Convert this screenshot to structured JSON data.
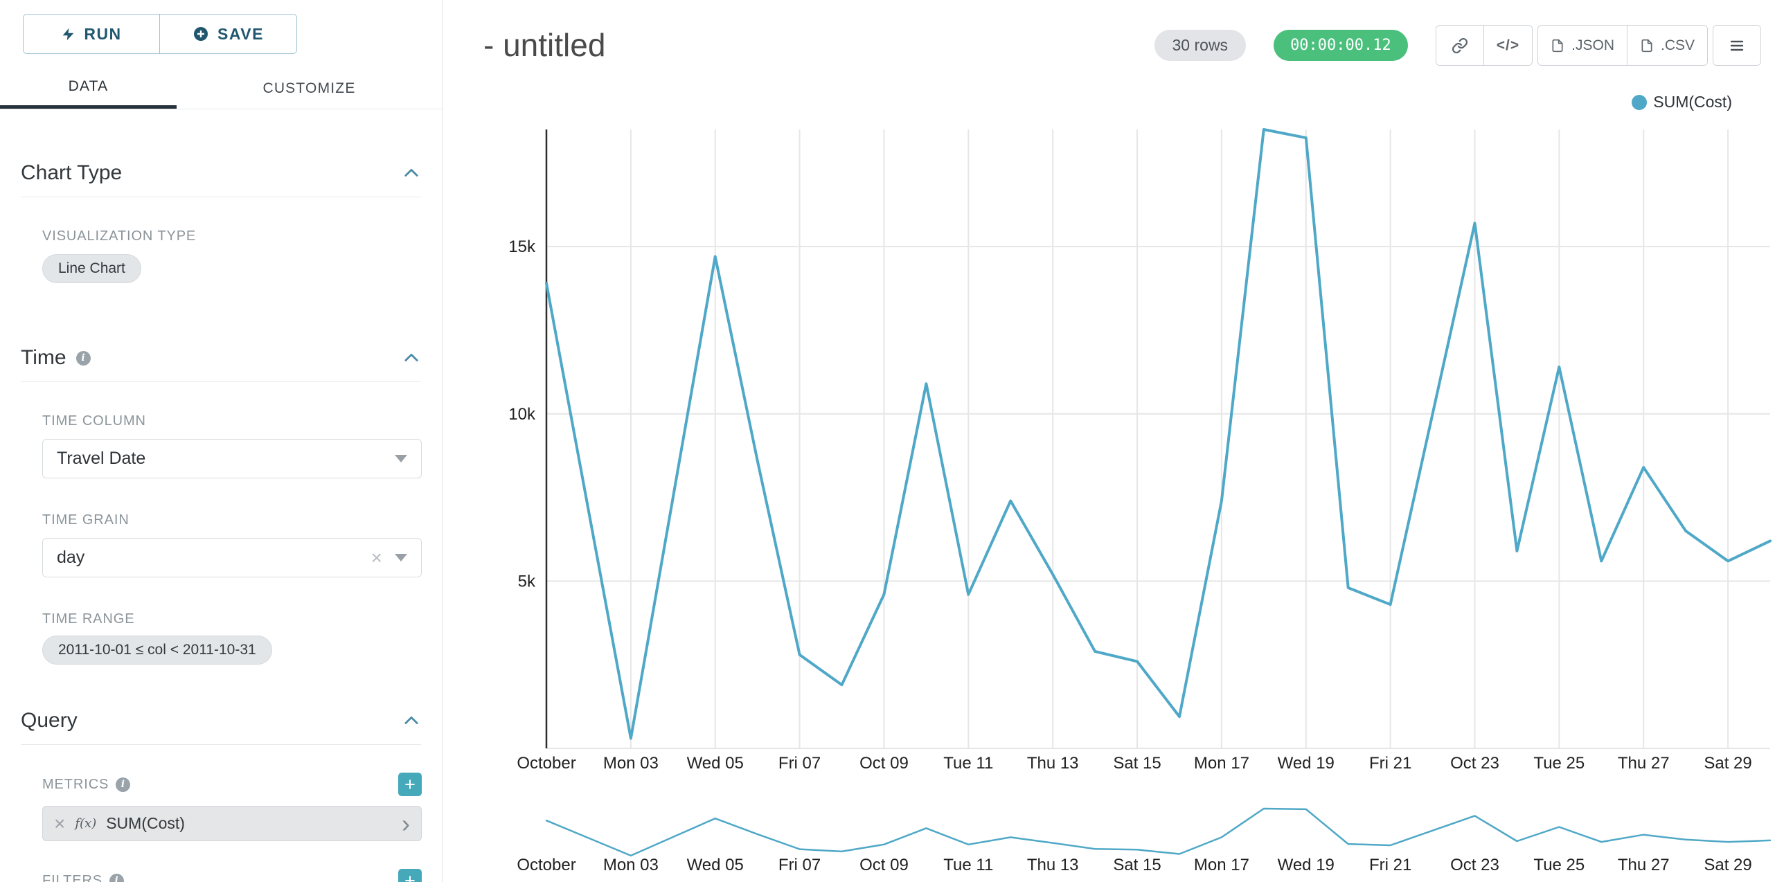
{
  "sidebar": {
    "run_label": "RUN",
    "save_label": "SAVE",
    "tabs": [
      {
        "label": "DATA",
        "active": true
      },
      {
        "label": "CUSTOMIZE",
        "active": false
      }
    ],
    "chart_type_section": {
      "title": "Chart Type",
      "viz_label": "VISUALIZATION TYPE",
      "viz_value": "Line Chart"
    },
    "time_section": {
      "title": "Time",
      "column_label": "TIME COLUMN",
      "column_value": "Travel Date",
      "grain_label": "TIME GRAIN",
      "grain_value": "day",
      "range_label": "TIME RANGE",
      "range_value": "2011-10-01 ≤ col < 2011-10-31"
    },
    "query_section": {
      "title": "Query",
      "metrics_label": "METRICS",
      "metric_fx": "f(x)",
      "metric_value": "SUM(Cost)",
      "filters_label": "FILTERS"
    }
  },
  "header": {
    "title": "- untitled",
    "rows_badge": "30 rows",
    "timer": "00:00:00.12",
    "code_icon_label": "</>",
    "json_label": ".JSON",
    "csv_label": ".CSV"
  },
  "legend": {
    "label": "SUM(Cost)"
  },
  "icons": {
    "run": "lightning-icon",
    "save": "plus-circle-icon",
    "collapse": "chevron-up-icon",
    "select": "chevron-down-icon",
    "clear": "x-icon",
    "add": "plus-icon",
    "metric_open": "chevron-right-icon",
    "share": "link-icon",
    "embed": "code-icon",
    "export_file": "file-icon",
    "menu": "hamburger-icon",
    "info": "info-icon",
    "legend": "dot-icon"
  },
  "colors": {
    "line": "#4fa8c7",
    "accent_button": "#45a9ba",
    "timer_badge": "#4bc07d",
    "rows_badge_bg": "#e2e4e7",
    "run_save_text": "#20576f",
    "run_save_border": "#9fc3d5",
    "tab_active_underline": "#28323c",
    "grid": "#e6e6e6"
  },
  "chart_data": {
    "type": "line",
    "title": "",
    "xlabel": "",
    "ylabel": "",
    "categories": [
      "2011-10-01",
      "2011-10-02",
      "2011-10-03",
      "2011-10-04",
      "2011-10-05",
      "2011-10-06",
      "2011-10-07",
      "2011-10-08",
      "2011-10-09",
      "2011-10-10",
      "2011-10-11",
      "2011-10-12",
      "2011-10-13",
      "2011-10-14",
      "2011-10-15",
      "2011-10-16",
      "2011-10-17",
      "2011-10-18",
      "2011-10-19",
      "2011-10-20",
      "2011-10-21",
      "2011-10-22",
      "2011-10-23",
      "2011-10-24",
      "2011-10-25",
      "2011-10-26",
      "2011-10-27",
      "2011-10-28",
      "2011-10-29",
      "2011-10-30"
    ],
    "series": [
      {
        "name": "SUM(Cost)",
        "values": [
          13900,
          7100,
          300,
          7500,
          14700,
          8600,
          2800,
          1900,
          4600,
          10900,
          4600,
          7400,
          5200,
          2900,
          2600,
          950,
          7400,
          18500,
          18250,
          4800,
          4300,
          10000,
          15700,
          5900,
          11400,
          5600,
          8400,
          6500,
          5600,
          6200
        ]
      }
    ],
    "ylim": [
      0,
      18500
    ],
    "y_ticks": [
      {
        "label": "5k",
        "value": 5000
      },
      {
        "label": "10k",
        "value": 10000
      },
      {
        "label": "15k",
        "value": 15000
      }
    ],
    "x_tick_positions": [
      0,
      2,
      4,
      6,
      8,
      10,
      12,
      14,
      16,
      18,
      20,
      22,
      24,
      26,
      28
    ],
    "x_tick_labels": [
      "October",
      "Mon 03",
      "Wed 05",
      "Fri 07",
      "Oct 09",
      "Tue 11",
      "Thu 13",
      "Sat 15",
      "Mon 17",
      "Wed 19",
      "Fri 21",
      "Oct 23",
      "Tue 25",
      "Thu 27",
      "Sat 29"
    ],
    "grid": true,
    "legend_position": "top-right",
    "has_range_brush_chart": true
  }
}
